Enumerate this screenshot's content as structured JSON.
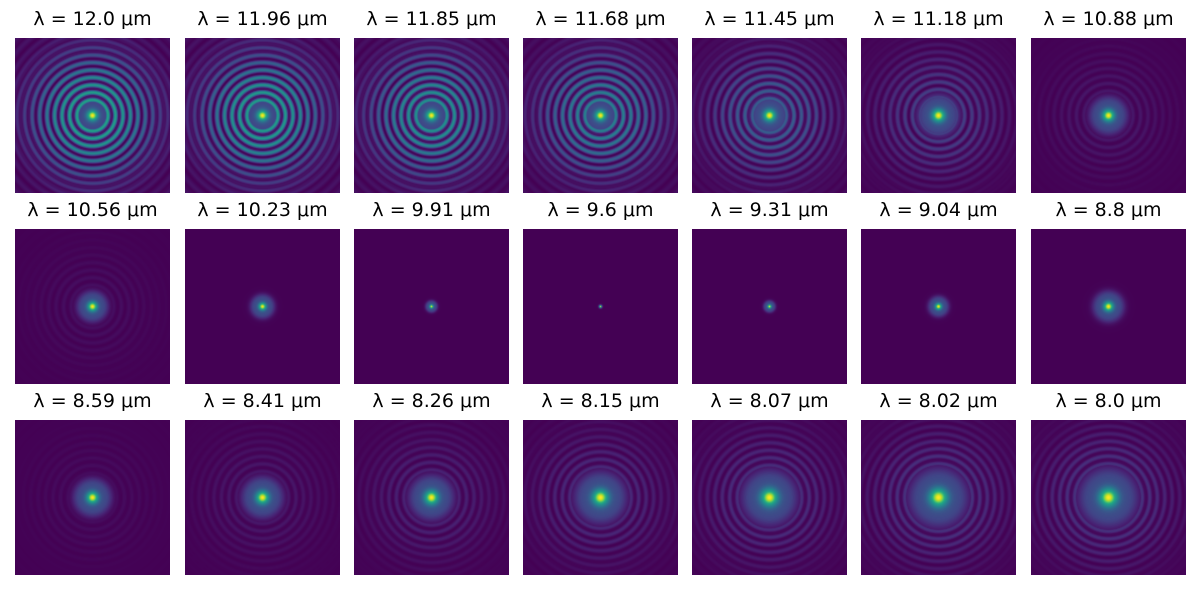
{
  "figure": {
    "colormap": "viridis",
    "background": "#ffffff",
    "rows": 3,
    "cols": 7,
    "panels": [
      {
        "label": "λ = 12.0 μm",
        "wavelength_um": 12.0,
        "spot_fraction": 0.1,
        "ring_amplitude": 0.85
      },
      {
        "label": "λ = 11.96 μm",
        "wavelength_um": 11.96,
        "spot_fraction": 0.1,
        "ring_amplitude": 0.82
      },
      {
        "label": "λ = 11.85 μm",
        "wavelength_um": 11.85,
        "spot_fraction": 0.1,
        "ring_amplitude": 0.75
      },
      {
        "label": "λ = 11.68 μm",
        "wavelength_um": 11.68,
        "spot_fraction": 0.1,
        "ring_amplitude": 0.65
      },
      {
        "label": "λ = 11.45 μm",
        "wavelength_um": 11.45,
        "spot_fraction": 0.11,
        "ring_amplitude": 0.45
      },
      {
        "label": "λ = 11.18 μm",
        "wavelength_um": 11.18,
        "spot_fraction": 0.12,
        "ring_amplitude": 0.28
      },
      {
        "label": "λ = 10.88 μm",
        "wavelength_um": 10.88,
        "spot_fraction": 0.11,
        "ring_amplitude": 0.1
      },
      {
        "label": "λ = 10.56 μm",
        "wavelength_um": 10.56,
        "spot_fraction": 0.09,
        "ring_amplitude": 0.06
      },
      {
        "label": "λ = 10.23 μm",
        "wavelength_um": 10.23,
        "spot_fraction": 0.07,
        "ring_amplitude": 0.0
      },
      {
        "label": "λ = 9.91 μm",
        "wavelength_um": 9.91,
        "spot_fraction": 0.035,
        "ring_amplitude": 0.0
      },
      {
        "label": "λ = 9.6 μm",
        "wavelength_um": 9.6,
        "spot_fraction": 0.012,
        "ring_amplitude": 0.0
      },
      {
        "label": "λ = 9.31 μm",
        "wavelength_um": 9.31,
        "spot_fraction": 0.035,
        "ring_amplitude": 0.0
      },
      {
        "label": "λ = 9.04 μm",
        "wavelength_um": 9.04,
        "spot_fraction": 0.06,
        "ring_amplitude": 0.0
      },
      {
        "label": "λ = 8.8 μm",
        "wavelength_um": 8.8,
        "spot_fraction": 0.09,
        "ring_amplitude": 0.0
      },
      {
        "label": "λ = 8.59 μm",
        "wavelength_um": 8.59,
        "spot_fraction": 0.11,
        "ring_amplitude": 0.05
      },
      {
        "label": "λ = 8.41 μm",
        "wavelength_um": 8.41,
        "spot_fraction": 0.12,
        "ring_amplitude": 0.1
      },
      {
        "label": "λ = 8.26 μm",
        "wavelength_um": 8.26,
        "spot_fraction": 0.13,
        "ring_amplitude": 0.15
      },
      {
        "label": "λ = 8.15 μm",
        "wavelength_um": 8.15,
        "spot_fraction": 0.15,
        "ring_amplitude": 0.18
      },
      {
        "label": "λ = 8.07 μm",
        "wavelength_um": 8.07,
        "spot_fraction": 0.16,
        "ring_amplitude": 0.2
      },
      {
        "label": "λ = 8.02 μm",
        "wavelength_um": 8.02,
        "spot_fraction": 0.17,
        "ring_amplitude": 0.22
      },
      {
        "label": "λ = 8.0 μm",
        "wavelength_um": 8.0,
        "spot_fraction": 0.17,
        "ring_amplitude": 0.22
      }
    ]
  }
}
